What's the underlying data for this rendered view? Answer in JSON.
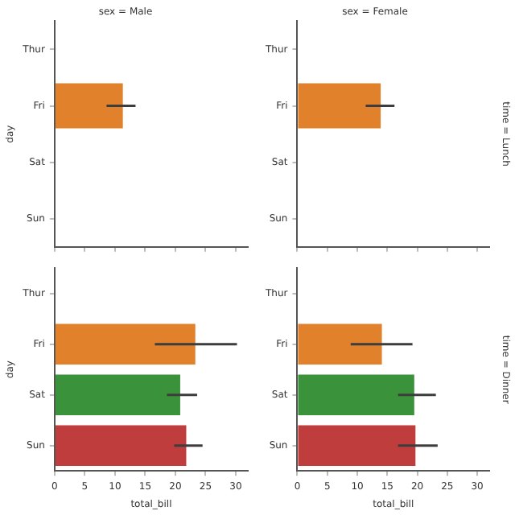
{
  "chart_data": [
    {
      "type": "bar",
      "orientation": "horizontal",
      "title": "sex = Male",
      "ylabel": "day",
      "categories": [
        "Thur",
        "Fri",
        "Sat",
        "Sun"
      ],
      "values": [
        null,
        11.3,
        null,
        null
      ],
      "errors": [
        null,
        [
          8.6,
          13.4
        ],
        null,
        null
      ],
      "colors": [
        "#3274a1",
        "#e1812c",
        "#3a923a",
        "#c03d3e"
      ],
      "xlim": [
        0,
        32
      ],
      "xticks": [
        0,
        5,
        10,
        15,
        20,
        25,
        30
      ],
      "tick_labels": "y",
      "grid": false,
      "legend": false
    },
    {
      "type": "bar",
      "orientation": "horizontal",
      "title": "sex = Female",
      "annotations": [
        "time = Lunch"
      ],
      "categories": [
        "Thur",
        "Fri",
        "Sat",
        "Sun"
      ],
      "values": [
        null,
        13.9,
        null,
        null
      ],
      "errors": [
        null,
        [
          11.4,
          16.2
        ],
        null,
        null
      ],
      "colors": [
        "#3274a1",
        "#e1812c",
        "#3a923a",
        "#c03d3e"
      ],
      "xlim": [
        0,
        32
      ],
      "xticks": [
        0,
        5,
        10,
        15,
        20,
        25,
        30
      ],
      "tick_labels": "y",
      "grid": false,
      "legend": false
    },
    {
      "type": "bar",
      "orientation": "horizontal",
      "xlabel": "total_bill",
      "ylabel": "day",
      "categories": [
        "Thur",
        "Fri",
        "Sat",
        "Sun"
      ],
      "values": [
        null,
        23.3,
        20.8,
        21.8
      ],
      "errors": [
        null,
        [
          16.6,
          30.2
        ],
        [
          18.6,
          23.6
        ],
        [
          19.8,
          24.5
        ]
      ],
      "colors": [
        "#3274a1",
        "#e1812c",
        "#3a923a",
        "#c03d3e"
      ],
      "xlim": [
        0,
        32
      ],
      "xticks": [
        0,
        5,
        10,
        15,
        20,
        25,
        30
      ],
      "grid": false,
      "legend": false
    },
    {
      "type": "bar",
      "orientation": "horizontal",
      "xlabel": "total_bill",
      "annotations": [
        "time = Dinner"
      ],
      "categories": [
        "Thur",
        "Fri",
        "Sat",
        "Sun"
      ],
      "values": [
        null,
        14.1,
        19.5,
        19.7
      ],
      "errors": [
        null,
        [
          8.9,
          19.2
        ],
        [
          16.8,
          23.1
        ],
        [
          16.8,
          23.4
        ]
      ],
      "colors": [
        "#3274a1",
        "#e1812c",
        "#3a923a",
        "#c03d3e"
      ],
      "xlim": [
        0,
        32
      ],
      "xticks": [
        0,
        5,
        10,
        15,
        20,
        25,
        30
      ],
      "grid": false,
      "legend": false
    }
  ]
}
